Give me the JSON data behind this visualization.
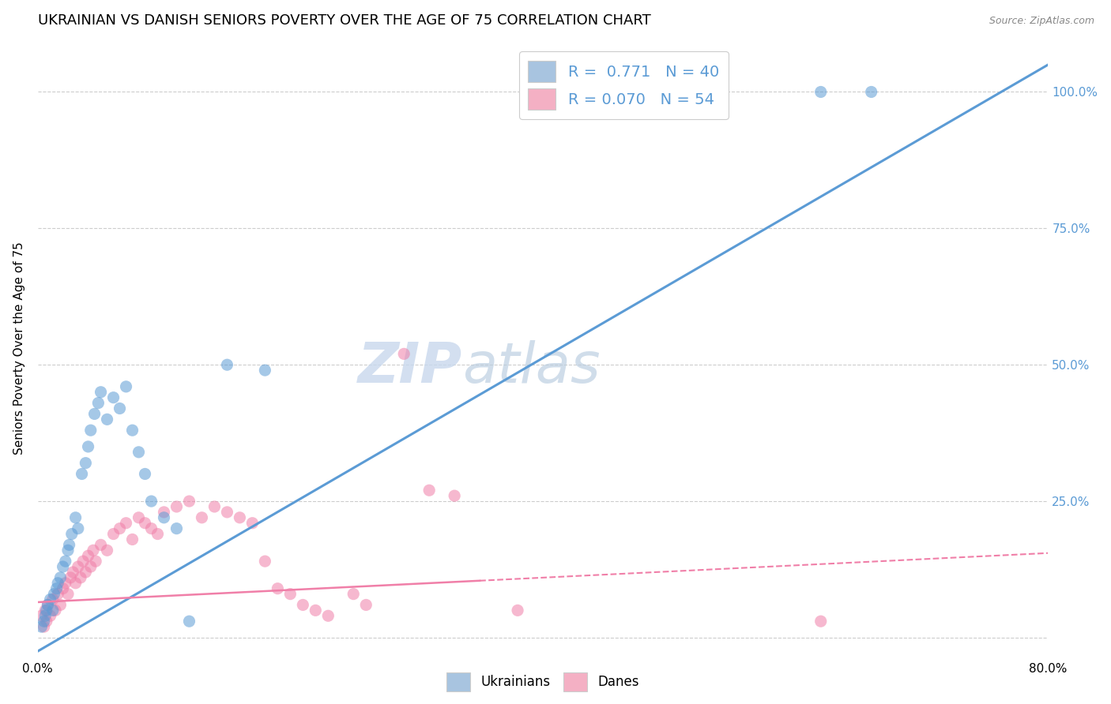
{
  "title": "UKRAINIAN VS DANISH SENIORS POVERTY OVER THE AGE OF 75 CORRELATION CHART",
  "source": "Source: ZipAtlas.com",
  "ylabel": "Seniors Poverty Over the Age of 75",
  "xlim": [
    0.0,
    0.8
  ],
  "ylim": [
    -0.04,
    1.1
  ],
  "yticks_right": [
    0.0,
    0.25,
    0.5,
    0.75,
    1.0
  ],
  "yticklabels_right": [
    "",
    "25.0%",
    "50.0%",
    "75.0%",
    "100.0%"
  ],
  "watermark_zip": "ZIP",
  "watermark_atlas": "atlas",
  "blue_color": "#5b9bd5",
  "pink_color": "#f07fa8",
  "blue_scatter": [
    [
      0.003,
      0.02
    ],
    [
      0.005,
      0.03
    ],
    [
      0.006,
      0.04
    ],
    [
      0.007,
      0.05
    ],
    [
      0.008,
      0.06
    ],
    [
      0.01,
      0.07
    ],
    [
      0.012,
      0.05
    ],
    [
      0.013,
      0.08
    ],
    [
      0.015,
      0.09
    ],
    [
      0.016,
      0.1
    ],
    [
      0.018,
      0.11
    ],
    [
      0.02,
      0.13
    ],
    [
      0.022,
      0.14
    ],
    [
      0.024,
      0.16
    ],
    [
      0.025,
      0.17
    ],
    [
      0.027,
      0.19
    ],
    [
      0.03,
      0.22
    ],
    [
      0.032,
      0.2
    ],
    [
      0.035,
      0.3
    ],
    [
      0.038,
      0.32
    ],
    [
      0.04,
      0.35
    ],
    [
      0.042,
      0.38
    ],
    [
      0.045,
      0.41
    ],
    [
      0.048,
      0.43
    ],
    [
      0.05,
      0.45
    ],
    [
      0.055,
      0.4
    ],
    [
      0.06,
      0.44
    ],
    [
      0.065,
      0.42
    ],
    [
      0.07,
      0.46
    ],
    [
      0.075,
      0.38
    ],
    [
      0.08,
      0.34
    ],
    [
      0.085,
      0.3
    ],
    [
      0.09,
      0.25
    ],
    [
      0.1,
      0.22
    ],
    [
      0.11,
      0.2
    ],
    [
      0.12,
      0.03
    ],
    [
      0.15,
      0.5
    ],
    [
      0.18,
      0.49
    ],
    [
      0.62,
      1.0
    ],
    [
      0.66,
      1.0
    ]
  ],
  "pink_scatter": [
    [
      0.003,
      0.04
    ],
    [
      0.005,
      0.02
    ],
    [
      0.006,
      0.05
    ],
    [
      0.007,
      0.03
    ],
    [
      0.008,
      0.06
    ],
    [
      0.01,
      0.04
    ],
    [
      0.012,
      0.07
    ],
    [
      0.014,
      0.05
    ],
    [
      0.016,
      0.08
    ],
    [
      0.018,
      0.06
    ],
    [
      0.02,
      0.09
    ],
    [
      0.022,
      0.1
    ],
    [
      0.024,
      0.08
    ],
    [
      0.026,
      0.11
    ],
    [
      0.028,
      0.12
    ],
    [
      0.03,
      0.1
    ],
    [
      0.032,
      0.13
    ],
    [
      0.034,
      0.11
    ],
    [
      0.036,
      0.14
    ],
    [
      0.038,
      0.12
    ],
    [
      0.04,
      0.15
    ],
    [
      0.042,
      0.13
    ],
    [
      0.044,
      0.16
    ],
    [
      0.046,
      0.14
    ],
    [
      0.05,
      0.17
    ],
    [
      0.055,
      0.16
    ],
    [
      0.06,
      0.19
    ],
    [
      0.065,
      0.2
    ],
    [
      0.07,
      0.21
    ],
    [
      0.075,
      0.18
    ],
    [
      0.08,
      0.22
    ],
    [
      0.085,
      0.21
    ],
    [
      0.09,
      0.2
    ],
    [
      0.095,
      0.19
    ],
    [
      0.1,
      0.23
    ],
    [
      0.11,
      0.24
    ],
    [
      0.12,
      0.25
    ],
    [
      0.13,
      0.22
    ],
    [
      0.14,
      0.24
    ],
    [
      0.15,
      0.23
    ],
    [
      0.16,
      0.22
    ],
    [
      0.17,
      0.21
    ],
    [
      0.18,
      0.14
    ],
    [
      0.19,
      0.09
    ],
    [
      0.2,
      0.08
    ],
    [
      0.21,
      0.06
    ],
    [
      0.22,
      0.05
    ],
    [
      0.23,
      0.04
    ],
    [
      0.25,
      0.08
    ],
    [
      0.26,
      0.06
    ],
    [
      0.29,
      0.52
    ],
    [
      0.31,
      0.27
    ],
    [
      0.33,
      0.26
    ],
    [
      0.38,
      0.05
    ],
    [
      0.62,
      0.03
    ]
  ],
  "blue_line": {
    "x0": 0.0,
    "y0": -0.025,
    "x1": 0.8,
    "y1": 1.05
  },
  "pink_line": {
    "x0": 0.0,
    "y0": 0.065,
    "x1": 0.8,
    "y1": 0.155
  },
  "pink_line_solid_end": 0.35,
  "background_color": "#ffffff",
  "grid_color": "#cccccc",
  "title_fontsize": 13,
  "axis_label_fontsize": 11,
  "tick_fontsize": 11,
  "watermark_fontsize_zip": 52,
  "watermark_fontsize_atlas": 52
}
